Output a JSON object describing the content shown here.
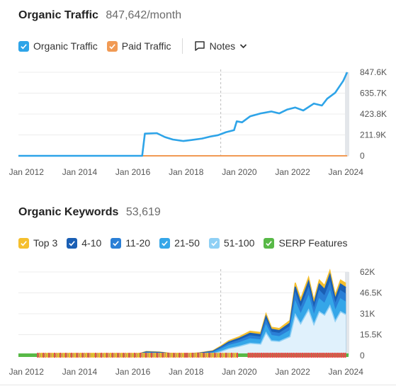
{
  "traffic": {
    "title": "Organic Traffic",
    "value": "847,642/month",
    "legend": [
      {
        "label": "Organic Traffic",
        "color": "#2ea4e8",
        "checked": true
      },
      {
        "label": "Paid Traffic",
        "color": "#f19a54",
        "checked": true
      }
    ],
    "notes_label": "Notes"
  },
  "keywords": {
    "title": "Organic Keywords",
    "value": "53,619",
    "legend": [
      {
        "label": "Top 3",
        "color": "#f5bf2d",
        "checked": true
      },
      {
        "label": "4-10",
        "color": "#1a5fb4",
        "checked": true
      },
      {
        "label": "11-20",
        "color": "#2a7fd6",
        "checked": true
      },
      {
        "label": "21-50",
        "color": "#35a6e8",
        "checked": true
      },
      {
        "label": "51-100",
        "color": "#8fd0f5",
        "checked": true
      },
      {
        "label": "SERP Features",
        "color": "#58b947",
        "checked": true
      }
    ]
  },
  "chart_data": [
    {
      "type": "line",
      "title": "Organic Traffic",
      "x_ticks": [
        "Jan 2012",
        "Jan 2014",
        "Jan 2016",
        "Jan 2018",
        "Jan 2020",
        "Jan 2022",
        "Jan 2024"
      ],
      "y_ticks": [
        "0",
        "211.9K",
        "423.8K",
        "635.7K",
        "847.6K"
      ],
      "ylim": [
        0,
        847600
      ],
      "xlim": [
        2011.7,
        2024.1
      ],
      "grid": true,
      "series": [
        {
          "name": "Organic Traffic",
          "color": "#2ea4e8",
          "points": [
            [
              2011.7,
              0
            ],
            [
              2016.35,
              0
            ],
            [
              2016.45,
              225000
            ],
            [
              2016.9,
              230000
            ],
            [
              2017.2,
              190000
            ],
            [
              2017.5,
              165000
            ],
            [
              2017.9,
              150000
            ],
            [
              2018.2,
              160000
            ],
            [
              2018.6,
              175000
            ],
            [
              2018.9,
              195000
            ],
            [
              2019.2,
              210000
            ],
            [
              2019.5,
              240000
            ],
            [
              2019.8,
              260000
            ],
            [
              2019.9,
              350000
            ],
            [
              2020.1,
              340000
            ],
            [
              2020.4,
              400000
            ],
            [
              2020.8,
              430000
            ],
            [
              2021.2,
              450000
            ],
            [
              2021.5,
              430000
            ],
            [
              2021.8,
              470000
            ],
            [
              2022.1,
              490000
            ],
            [
              2022.4,
              460000
            ],
            [
              2022.8,
              530000
            ],
            [
              2023.1,
              510000
            ],
            [
              2023.3,
              580000
            ],
            [
              2023.6,
              640000
            ],
            [
              2023.9,
              760000
            ],
            [
              2024.05,
              847642
            ]
          ]
        },
        {
          "name": "Paid Traffic",
          "color": "#f19a54",
          "points": [
            [
              2011.7,
              0
            ],
            [
              2024.05,
              0
            ]
          ]
        }
      ]
    },
    {
      "type": "area",
      "title": "Organic Keywords",
      "x_ticks": [
        "Jan 2012",
        "Jan 2014",
        "Jan 2016",
        "Jan 2018",
        "Jan 2020",
        "Jan 2022",
        "Jan 2024"
      ],
      "y_ticks": [
        "0",
        "15.5K",
        "31K",
        "46.5K",
        "62K"
      ],
      "ylim": [
        0,
        62000
      ],
      "xlim": [
        2011.7,
        2024.1
      ],
      "grid": true,
      "x": [
        2011.7,
        2016.0,
        2016.5,
        2017.0,
        2017.5,
        2018.0,
        2018.5,
        2019.0,
        2019.3,
        2019.6,
        2020.0,
        2020.4,
        2020.8,
        2021.0,
        2021.2,
        2021.5,
        2021.9,
        2022.1,
        2022.3,
        2022.6,
        2022.8,
        2023.0,
        2023.2,
        2023.4,
        2023.6,
        2023.8,
        2024.0
      ],
      "series": [
        {
          "name": "Top 3",
          "color": "#f5bf2d",
          "values": [
            0,
            0,
            3000,
            2600,
            1400,
            1200,
            2000,
            3500,
            7000,
            11000,
            14000,
            18000,
            17000,
            31000,
            21000,
            20000,
            26000,
            54000,
            42000,
            58000,
            41000,
            56000,
            52000,
            63000,
            45000,
            56000,
            53619
          ]
        },
        {
          "name": "4-10",
          "color": "#1a5fb4",
          "values": [
            0,
            0,
            2700,
            2300,
            1200,
            1000,
            1800,
            3100,
            6300,
            10000,
            12800,
            16500,
            15500,
            29000,
            19500,
            18500,
            24000,
            51000,
            39000,
            55000,
            38000,
            53000,
            49000,
            60000,
            42000,
            53000,
            50500
          ]
        },
        {
          "name": "11-20",
          "color": "#2a7fd6",
          "values": [
            0,
            0,
            2200,
            1900,
            1000,
            800,
            1400,
            2600,
            5500,
            8800,
            11300,
            14600,
            13700,
            26000,
            17300,
            16400,
            21500,
            46000,
            35000,
            50000,
            34000,
            48000,
            44000,
            54000,
            38000,
            48000,
            45500
          ]
        },
        {
          "name": "21-50",
          "color": "#35a6e8",
          "values": [
            0,
            0,
            1700,
            1400,
            700,
            600,
            1100,
            2000,
            4500,
            7400,
            9500,
            12400,
            11600,
            22500,
            14800,
            14000,
            18500,
            40000,
            30500,
            44000,
            29500,
            42000,
            38500,
            47500,
            33000,
            42000,
            39500
          ]
        },
        {
          "name": "51-100",
          "color": "#8fd0f5",
          "values": [
            0,
            0,
            1000,
            800,
            400,
            300,
            600,
            1200,
            3000,
            5200,
            6900,
            9100,
            8500,
            17000,
            11000,
            10500,
            14000,
            30500,
            23500,
            34000,
            23000,
            32500,
            30000,
            37000,
            25500,
            32500,
            30500
          ]
        }
      ]
    }
  ]
}
